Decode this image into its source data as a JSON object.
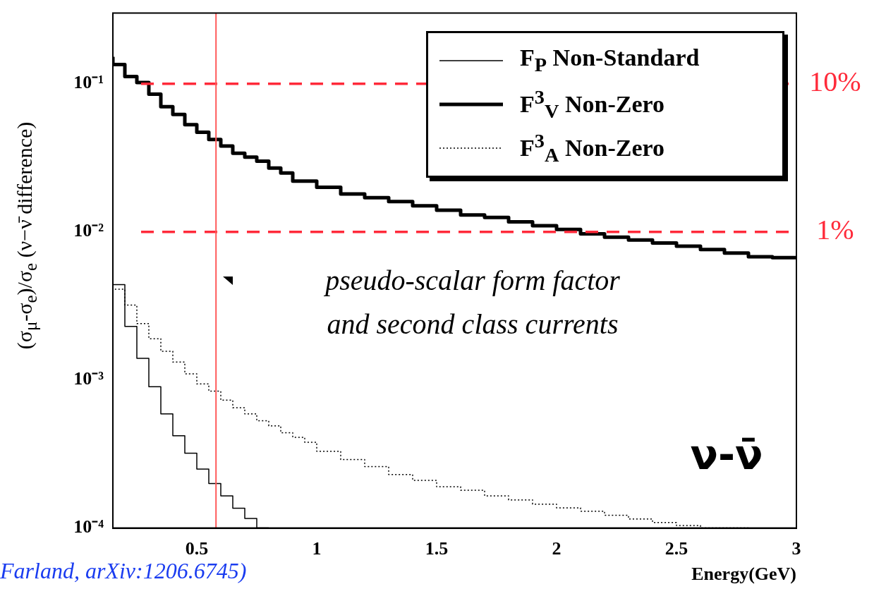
{
  "chart_data": {
    "type": "step",
    "xlabel": "Energy(GeV)",
    "ylabel": "(σ$_{μ}$-σ$_{e}$)/σ$_{e}$  (ν−ν̄ difference)",
    "xlim": [
      0.15,
      3
    ],
    "ylim": [
      0.0001,
      0.3
    ],
    "log": true,
    "grid": false,
    "legend": "top right",
    "marker": "none",
    "xticks": [
      0.5,
      1,
      1.5,
      2,
      2.5,
      3
    ],
    "yticks": [
      {
        "value": 0.0001,
        "label": "10⁻⁴"
      },
      {
        "value": 0.001,
        "label": "10⁻³"
      },
      {
        "value": 0.01,
        "label": "10⁻²"
      },
      {
        "value": 0.1,
        "label": "10⁻¹"
      }
    ],
    "series": [
      {
        "name": "F$_{P}$ Non-Standard",
        "color": "#000000",
        "line_style": "solid",
        "x": [
          0.15,
          0.2,
          0.25,
          0.3,
          0.35,
          0.4,
          0.45,
          0.5,
          0.55,
          0.6,
          0.65,
          0.7,
          0.75,
          0.8
        ],
        "values": [
          0.0097,
          0.0044,
          0.0023,
          0.0014,
          0.0009,
          0.00059,
          0.00042,
          0.00032,
          0.00025,
          0.0002,
          0.000165,
          0.000136,
          0.000116,
          0.0001
        ]
      },
      {
        "name": "F$^{3}$$_{V}$ Non-Zero",
        "color": "#000000",
        "line_style": "solid",
        "x": [
          0.15,
          0.2,
          0.25,
          0.3,
          0.35,
          0.4,
          0.45,
          0.5,
          0.55,
          0.6,
          0.65,
          0.7,
          0.75,
          0.8,
          0.85,
          0.9,
          1.0,
          1.1,
          1.2,
          1.3,
          1.4,
          1.5,
          1.6,
          1.7,
          1.8,
          1.9,
          2.0,
          2.1,
          2.2,
          2.3,
          2.4,
          2.5,
          2.6,
          2.7,
          2.8,
          2.9,
          3.0
        ],
        "values": [
          0.152,
          0.135,
          0.112,
          0.102,
          0.085,
          0.07,
          0.062,
          0.053,
          0.047,
          0.042,
          0.038,
          0.034,
          0.032,
          0.03,
          0.027,
          0.025,
          0.022,
          0.02,
          0.018,
          0.017,
          0.016,
          0.015,
          0.014,
          0.013,
          0.0125,
          0.0117,
          0.011,
          0.0104,
          0.0097,
          0.0092,
          0.0088,
          0.0084,
          0.008,
          0.0076,
          0.0072,
          0.0068,
          0.0067
        ]
      },
      {
        "name": "F$^{3}$$_{A}$ Non-Zero",
        "color": "#000000",
        "line_style": "dotted",
        "x": [
          0.15,
          0.2,
          0.25,
          0.3,
          0.35,
          0.4,
          0.45,
          0.5,
          0.55,
          0.6,
          0.65,
          0.7,
          0.75,
          0.8,
          0.85,
          0.9,
          0.95,
          1.0,
          1.1,
          1.2,
          1.3,
          1.4,
          1.5,
          1.6,
          1.7,
          1.8,
          1.9,
          2.0,
          2.1,
          2.2,
          2.3,
          2.4,
          2.5,
          2.6,
          2.7,
          2.8
        ],
        "values": [
          0.0042,
          0.0041,
          0.0032,
          0.0024,
          0.0019,
          0.00156,
          0.00132,
          0.0011,
          0.00094,
          0.00084,
          0.00073,
          0.00065,
          0.00059,
          0.00053,
          0.00049,
          0.00044,
          0.00041,
          0.00038,
          0.00033,
          0.00029,
          0.00026,
          0.00023,
          0.00021,
          0.00019,
          0.00018,
          0.000165,
          0.000155,
          0.000145,
          0.000137,
          0.00013,
          0.000122,
          0.000115,
          0.000109,
          0.000104,
          0.0001,
          0.0001
        ]
      }
    ],
    "ref_lines": [
      {
        "axis": "y",
        "value": 0.1,
        "label": "10%",
        "color": "#ff2a3a",
        "line_style": "dashed"
      },
      {
        "axis": "y",
        "value": 0.01,
        "label": "1%",
        "color": "#ff2a3a",
        "line_style": "dashed"
      },
      {
        "axis": "x",
        "value": 0.58,
        "color": "#ff5a5a",
        "line_style": "solid"
      }
    ],
    "annotations": [
      "pseudo-scalar form factor",
      "and second class currents",
      "ν-ν̄",
      "Farland, arXiv:1206.6745)"
    ]
  }
}
